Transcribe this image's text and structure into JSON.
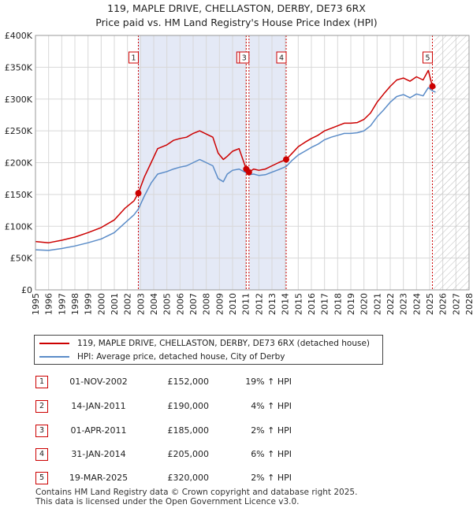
{
  "title_line1": "119, MAPLE DRIVE, CHELLASTON, DERBY, DE73 6RX",
  "title_line2": "Price paid vs. HM Land Registry's House Price Index (HPI)",
  "colors": {
    "property_line": "#cc0000",
    "hpi_line": "#5b8cc8",
    "shade": "#e4e9f6",
    "grid": "#d8d8d8",
    "marker": "#cc0000"
  },
  "chart_data": {
    "type": "line",
    "xlim": [
      1995,
      2028
    ],
    "ylim": [
      0,
      400000
    ],
    "y_ticks": [
      {
        "value": 0,
        "label": "£0"
      },
      {
        "value": 50000,
        "label": "£50K"
      },
      {
        "value": 100000,
        "label": "£100K"
      },
      {
        "value": 150000,
        "label": "£150K"
      },
      {
        "value": 200000,
        "label": "£200K"
      },
      {
        "value": 250000,
        "label": "£250K"
      },
      {
        "value": 300000,
        "label": "£300K"
      },
      {
        "value": 350000,
        "label": "£350K"
      },
      {
        "value": 400000,
        "label": "£400K"
      }
    ],
    "x_ticks": [
      "1995",
      "1996",
      "1997",
      "1998",
      "1999",
      "2000",
      "2001",
      "2002",
      "2003",
      "2004",
      "2005",
      "2006",
      "2007",
      "2008",
      "2009",
      "2010",
      "2011",
      "2012",
      "2013",
      "2014",
      "2015",
      "2016",
      "2017",
      "2018",
      "2019",
      "2020",
      "2021",
      "2022",
      "2023",
      "2024",
      "2025",
      "2026",
      "2027",
      "2028"
    ],
    "shaded_spans": [
      [
        2002.83,
        2011.04
      ],
      [
        2011.25,
        2014.08
      ]
    ],
    "forecast_hatch_from": 2025.3,
    "series": [
      {
        "name": "119, MAPLE DRIVE, CHELLASTON, DERBY, DE73 6RX (detached house)",
        "color": "#cc0000",
        "points": [
          [
            1995.0,
            76000
          ],
          [
            1996.0,
            74000
          ],
          [
            1997.0,
            78000
          ],
          [
            1998.0,
            83000
          ],
          [
            1999.0,
            90000
          ],
          [
            2000.0,
            98000
          ],
          [
            2001.0,
            110000
          ],
          [
            2001.8,
            128000
          ],
          [
            2002.5,
            140000
          ],
          [
            2002.83,
            152000
          ],
          [
            2003.3,
            178000
          ],
          [
            2003.8,
            200000
          ],
          [
            2004.3,
            222000
          ],
          [
            2005.0,
            228000
          ],
          [
            2005.5,
            235000
          ],
          [
            2006.0,
            238000
          ],
          [
            2006.5,
            240000
          ],
          [
            2007.0,
            246000
          ],
          [
            2007.5,
            250000
          ],
          [
            2008.0,
            245000
          ],
          [
            2008.5,
            240000
          ],
          [
            2008.9,
            215000
          ],
          [
            2009.3,
            205000
          ],
          [
            2009.6,
            210000
          ],
          [
            2010.0,
            218000
          ],
          [
            2010.5,
            222000
          ],
          [
            2011.04,
            190000
          ],
          [
            2011.25,
            185000
          ],
          [
            2011.6,
            190000
          ],
          [
            2012.0,
            188000
          ],
          [
            2012.5,
            190000
          ],
          [
            2013.0,
            195000
          ],
          [
            2013.5,
            200000
          ],
          [
            2014.08,
            205000
          ],
          [
            2014.5,
            214000
          ],
          [
            2015.0,
            225000
          ],
          [
            2015.5,
            232000
          ],
          [
            2016.0,
            238000
          ],
          [
            2016.5,
            243000
          ],
          [
            2017.0,
            250000
          ],
          [
            2017.5,
            254000
          ],
          [
            2018.0,
            258000
          ],
          [
            2018.5,
            262000
          ],
          [
            2019.0,
            262000
          ],
          [
            2019.5,
            263000
          ],
          [
            2020.0,
            268000
          ],
          [
            2020.5,
            278000
          ],
          [
            2021.0,
            295000
          ],
          [
            2021.5,
            308000
          ],
          [
            2022.0,
            320000
          ],
          [
            2022.5,
            330000
          ],
          [
            2023.0,
            333000
          ],
          [
            2023.5,
            328000
          ],
          [
            2024.0,
            335000
          ],
          [
            2024.5,
            330000
          ],
          [
            2024.9,
            345000
          ],
          [
            2025.21,
            320000
          ],
          [
            2025.45,
            318000
          ]
        ]
      },
      {
        "name": "HPI: Average price, detached house, City of Derby",
        "color": "#5b8cc8",
        "points": [
          [
            1995.0,
            63000
          ],
          [
            1996.0,
            62000
          ],
          [
            1997.0,
            65000
          ],
          [
            1998.0,
            69000
          ],
          [
            1999.0,
            74000
          ],
          [
            2000.0,
            80000
          ],
          [
            2001.0,
            90000
          ],
          [
            2001.8,
            105000
          ],
          [
            2002.5,
            118000
          ],
          [
            2002.83,
            127000
          ],
          [
            2003.3,
            148000
          ],
          [
            2003.8,
            168000
          ],
          [
            2004.3,
            182000
          ],
          [
            2005.0,
            186000
          ],
          [
            2005.5,
            190000
          ],
          [
            2006.0,
            193000
          ],
          [
            2006.5,
            195000
          ],
          [
            2007.0,
            200000
          ],
          [
            2007.5,
            205000
          ],
          [
            2008.0,
            200000
          ],
          [
            2008.5,
            195000
          ],
          [
            2008.9,
            175000
          ],
          [
            2009.3,
            170000
          ],
          [
            2009.6,
            182000
          ],
          [
            2010.0,
            188000
          ],
          [
            2010.5,
            190000
          ],
          [
            2011.04,
            184000
          ],
          [
            2011.25,
            181000
          ],
          [
            2011.6,
            182000
          ],
          [
            2012.0,
            180000
          ],
          [
            2012.5,
            181000
          ],
          [
            2013.0,
            185000
          ],
          [
            2013.5,
            189000
          ],
          [
            2014.08,
            194000
          ],
          [
            2014.5,
            203000
          ],
          [
            2015.0,
            212000
          ],
          [
            2015.5,
            218000
          ],
          [
            2016.0,
            224000
          ],
          [
            2016.5,
            229000
          ],
          [
            2017.0,
            236000
          ],
          [
            2017.5,
            240000
          ],
          [
            2018.0,
            243000
          ],
          [
            2018.5,
            246000
          ],
          [
            2019.0,
            246000
          ],
          [
            2019.5,
            247000
          ],
          [
            2020.0,
            250000
          ],
          [
            2020.5,
            258000
          ],
          [
            2021.0,
            272000
          ],
          [
            2021.5,
            283000
          ],
          [
            2022.0,
            295000
          ],
          [
            2022.5,
            304000
          ],
          [
            2023.0,
            307000
          ],
          [
            2023.5,
            302000
          ],
          [
            2024.0,
            308000
          ],
          [
            2024.5,
            305000
          ],
          [
            2024.9,
            318000
          ],
          [
            2025.21,
            313000
          ],
          [
            2025.45,
            311000
          ]
        ]
      }
    ],
    "sale_markers": [
      {
        "label": "1",
        "x": 2002.83,
        "y": 152000
      },
      {
        "label": "2",
        "x": 2011.04,
        "y": 190000
      },
      {
        "label": "3",
        "x": 2011.25,
        "y": 185000
      },
      {
        "label": "4",
        "x": 2014.08,
        "y": 205000
      },
      {
        "label": "5",
        "x": 2025.21,
        "y": 320000
      }
    ]
  },
  "legend": {
    "property": "119, MAPLE DRIVE, CHELLASTON, DERBY, DE73 6RX (detached house)",
    "hpi": "HPI: Average price, detached house, City of Derby"
  },
  "transactions": [
    {
      "num": "1",
      "date": "01-NOV-2002",
      "price": "£152,000",
      "hpi": "19% ↑ HPI"
    },
    {
      "num": "2",
      "date": "14-JAN-2011",
      "price": "£190,000",
      "hpi": "4% ↑ HPI"
    },
    {
      "num": "3",
      "date": "01-APR-2011",
      "price": "£185,000",
      "hpi": "2% ↑ HPI"
    },
    {
      "num": "4",
      "date": "31-JAN-2014",
      "price": "£205,000",
      "hpi": "6% ↑ HPI"
    },
    {
      "num": "5",
      "date": "19-MAR-2025",
      "price": "£320,000",
      "hpi": "2% ↑ HPI"
    }
  ],
  "footer_line1": "Contains HM Land Registry data © Crown copyright and database right 2025.",
  "footer_line2": "This data is licensed under the Open Government Licence v3.0."
}
